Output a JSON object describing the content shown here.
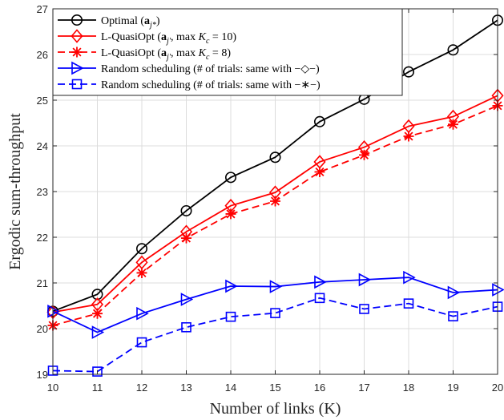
{
  "chart_data": {
    "type": "line",
    "xlabel": "Number of links (K)",
    "ylabel": "Ergodic sum-throughput",
    "x": [
      10,
      11,
      12,
      13,
      14,
      15,
      16,
      17,
      18,
      19,
      20
    ],
    "xlim": [
      10,
      20
    ],
    "ylim": [
      19,
      27
    ],
    "xticks": [
      "10",
      "11",
      "12",
      "13",
      "14",
      "15",
      "16",
      "17",
      "18",
      "19",
      "20"
    ],
    "yticks": [
      "19",
      "20",
      "21",
      "22",
      "23",
      "24",
      "25",
      "26",
      "27"
    ],
    "grid": true,
    "legend_position": "top-left",
    "series": [
      {
        "name": "Optimal (a_{j*})",
        "color": "#000000",
        "marker": "circle",
        "dash": "solid",
        "values": [
          20.38,
          20.75,
          21.75,
          22.58,
          23.31,
          23.75,
          24.53,
          25.02,
          25.62,
          26.1,
          26.75
        ]
      },
      {
        "name": "L-QuasiOpt (a_{j'}, max K_c = 10)",
        "color": "#ff0000",
        "marker": "diamond",
        "dash": "solid",
        "values": [
          20.36,
          20.53,
          21.45,
          22.12,
          22.69,
          22.98,
          23.65,
          23.97,
          24.43,
          24.64,
          25.1
        ]
      },
      {
        "name": "L-QuasiOpt (a_{j'}, max K_c = 8)",
        "color": "#ff0000",
        "marker": "asterisk",
        "dash": "dashed",
        "values": [
          20.07,
          20.33,
          21.22,
          21.98,
          22.51,
          22.79,
          23.43,
          23.8,
          24.21,
          24.47,
          24.88
        ]
      },
      {
        "name": "Random scheduling (# of trials: same with −◇−)",
        "color": "#0000ff",
        "marker": "triangle-right",
        "dash": "solid",
        "values": [
          20.38,
          19.92,
          20.33,
          20.64,
          20.93,
          20.92,
          21.02,
          21.07,
          21.12,
          20.79,
          20.85
        ]
      },
      {
        "name": "Random scheduling (# of trials: same with −∗−)",
        "color": "#0000ff",
        "marker": "square",
        "dash": "dashed",
        "values": [
          19.08,
          19.06,
          19.7,
          20.03,
          20.26,
          20.34,
          20.67,
          20.43,
          20.55,
          20.27,
          20.48
        ]
      }
    ]
  }
}
